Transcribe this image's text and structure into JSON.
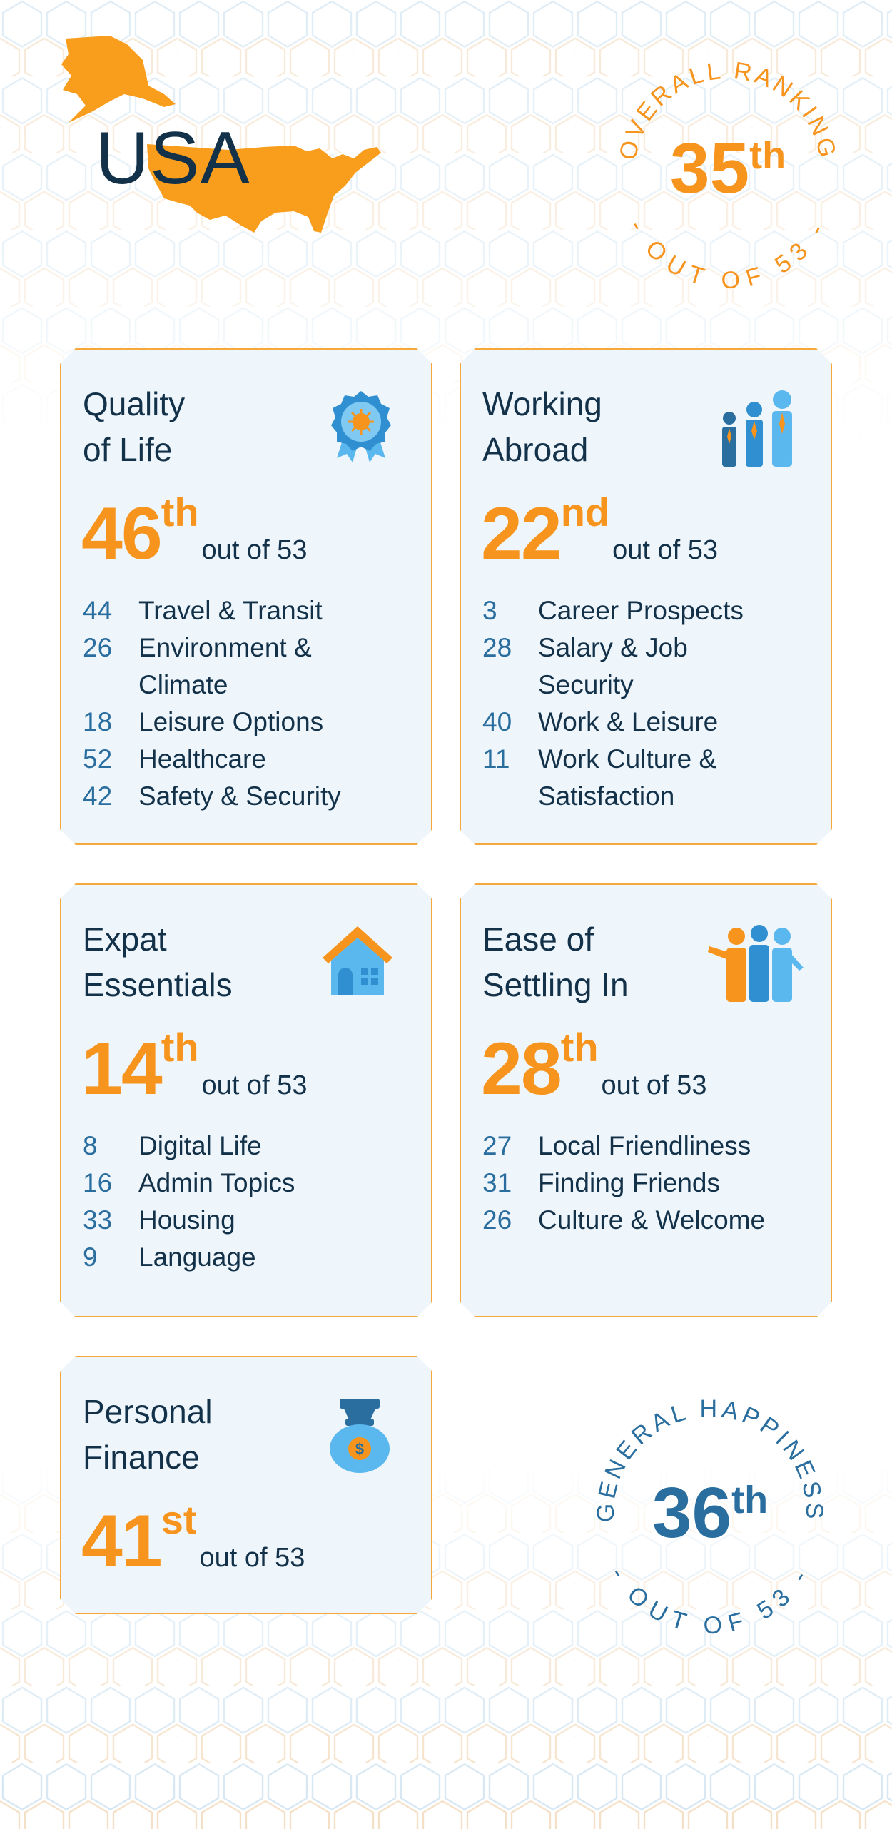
{
  "header": {
    "country": "USA",
    "overall_ring_text": "OVERALL RANKING",
    "overall_ring_sub": "- OUT OF 53 -",
    "overall_rank_number": "35",
    "overall_rank_suffix": "th"
  },
  "cards": [
    {
      "title_line1": "Quality",
      "title_line2": "of Life",
      "rank_number": "46",
      "rank_suffix": "th",
      "out_of": "out of 53",
      "icon": "award-ribbon-icon",
      "subs": [
        {
          "num": "44",
          "label": "Travel & Transit"
        },
        {
          "num": "26",
          "label": "Environment & Climate"
        },
        {
          "num": "18",
          "label": "Leisure Options"
        },
        {
          "num": "52",
          "label": "Healthcare"
        },
        {
          "num": "42",
          "label": "Safety & Security"
        }
      ]
    },
    {
      "title_line1": "Working",
      "title_line2": "Abroad",
      "rank_number": "22",
      "rank_suffix": "nd",
      "out_of": "out of 53",
      "icon": "business-people-icon",
      "subs": [
        {
          "num": "3",
          "label": "Career Prospects"
        },
        {
          "num": "28",
          "label": "Salary & Job Security"
        },
        {
          "num": "40",
          "label": "Work & Leisure"
        },
        {
          "num": "11",
          "label": "Work Culture & Satisfaction"
        }
      ]
    },
    {
      "title_line1": "Expat",
      "title_line2": "Essentials",
      "rank_number": "14",
      "rank_suffix": "th",
      "out_of": "out of 53",
      "icon": "house-icon",
      "subs": [
        {
          "num": "8",
          "label": "Digital Life"
        },
        {
          "num": "16",
          "label": "Admin Topics"
        },
        {
          "num": "33",
          "label": "Housing"
        },
        {
          "num": "9",
          "label": "Language"
        }
      ]
    },
    {
      "title_line1": "Ease of",
      "title_line2": "Settling In",
      "rank_number": "28",
      "rank_suffix": "th",
      "out_of": "out of 53",
      "icon": "welcoming-people-icon",
      "subs": [
        {
          "num": "27",
          "label": "Local Friendliness"
        },
        {
          "num": "31",
          "label": "Finding Friends"
        },
        {
          "num": "26",
          "label": "Culture & Welcome"
        }
      ]
    },
    {
      "title_line1": "Personal",
      "title_line2": "Finance",
      "rank_number": "41",
      "rank_suffix": "st",
      "out_of": "out of 53",
      "icon": "money-bag-icon",
      "subs": []
    }
  ],
  "happiness": {
    "ring_text": "GENERAL HAPPINESS",
    "ring_sub": "- OUT OF 53 -",
    "rank_number": "36",
    "rank_suffix": "th"
  },
  "colors": {
    "orange": "#f7941d",
    "navy": "#13324a",
    "blue": "#2a6e9f",
    "light_blue": "#5bb8ee",
    "card_bg": "#eef5fb"
  }
}
